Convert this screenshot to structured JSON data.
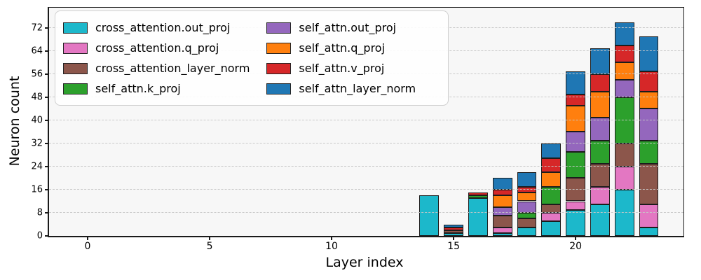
{
  "chart_data": {
    "type": "bar",
    "stacked": true,
    "xlabel": "Layer index",
    "ylabel": "Neuron count",
    "x": [
      14,
      15,
      16,
      17,
      18,
      19,
      20,
      21,
      22,
      23
    ],
    "bar_width": 0.8,
    "series": [
      {
        "name": "cross_attention.out_proj",
        "color": "#1cb8cb",
        "values": [
          14,
          1,
          13,
          1,
          3,
          5,
          9,
          11,
          16,
          3
        ]
      },
      {
        "name": "cross_attention.q_proj",
        "color": "#e377c2",
        "values": [
          0,
          0,
          0,
          2,
          0,
          3,
          3,
          6,
          8,
          8
        ]
      },
      {
        "name": "cross_attention_layer_norm",
        "color": "#8c564b",
        "values": [
          0,
          1,
          0,
          4,
          3,
          3,
          8,
          8,
          8,
          14
        ]
      },
      {
        "name": "self_attn.k_proj",
        "color": "#2ca02c",
        "values": [
          0,
          0,
          1,
          0,
          2,
          6,
          9,
          8,
          16,
          8
        ]
      },
      {
        "name": "self_attn.out_proj",
        "color": "#9467bd",
        "values": [
          0,
          0,
          0,
          3,
          4,
          0,
          7,
          8,
          6,
          11
        ]
      },
      {
        "name": "self_attn.q_proj",
        "color": "#ff7f0e",
        "values": [
          0,
          0,
          0,
          4,
          3,
          5,
          9,
          9,
          6,
          6
        ]
      },
      {
        "name": "self_attn.v_proj",
        "color": "#d62728",
        "values": [
          0,
          1,
          1,
          2,
          2,
          5,
          4,
          6,
          6,
          7
        ]
      },
      {
        "name": "self_attn_layer_norm",
        "color": "#1f77b4",
        "values": [
          0,
          1,
          0,
          4,
          5,
          5,
          8,
          9,
          8,
          12
        ]
      }
    ],
    "bar_totals": [
      14,
      4,
      15,
      20,
      22,
      32,
      57,
      65,
      74,
      69
    ],
    "xticks": [
      0,
      5,
      10,
      15,
      20
    ],
    "yticks": [
      0,
      8,
      16,
      24,
      32,
      40,
      48,
      56,
      64,
      72
    ],
    "xlim": [
      -1.58,
      24.42
    ],
    "ylim": [
      0,
      79
    ],
    "grid": "horizontal-dashed",
    "legend_position": "upper-left",
    "legend_columns": 2,
    "plot_bg": "#f7f7f7",
    "edge_color": "#1c1c1c"
  }
}
